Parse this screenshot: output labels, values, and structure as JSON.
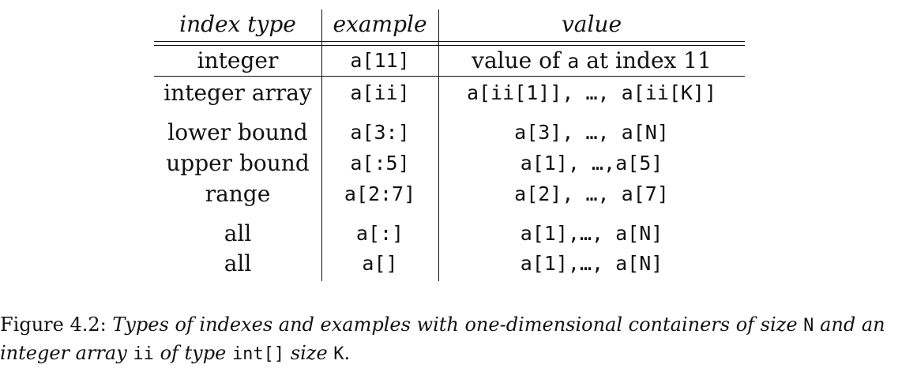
{
  "table": {
    "headers": [
      "index type",
      "example",
      "value"
    ],
    "rows": [
      {
        "type": "integer",
        "example": "a[11]",
        "value_parts": [
          "value of ",
          "a",
          " at index 11"
        ]
      },
      {
        "type": "integer array",
        "example": "a[ii]",
        "value_parts": [
          "a[ii[1]], …, a[ii[K]]"
        ]
      },
      {
        "type": "lower bound",
        "example": "a[3:]",
        "value_parts": [
          "a[3], …, a[N]"
        ]
      },
      {
        "type": "upper bound",
        "example": "a[:5]",
        "value_parts": [
          "a[1], …,a[5]"
        ]
      },
      {
        "type": "range",
        "example": "a[2:7]",
        "value_parts": [
          "a[2], …, a[7]"
        ]
      },
      {
        "type": "all",
        "example": "a[:]",
        "value_parts": [
          "a[1],…, a[N]"
        ]
      },
      {
        "type": "all",
        "example": "a[]",
        "value_parts": [
          "a[1],…, a[N]"
        ]
      }
    ]
  },
  "caption": {
    "label": "Figure 4.2:",
    "p1": "Types of indexes and examples with one-dimensional containers of size",
    "m1": "N",
    "p2": "and an",
    "p3": "integer array",
    "m2": "ii",
    "p4": "of type",
    "m3": "int[]",
    "p5": "size",
    "m4": "K",
    "p6": "."
  }
}
